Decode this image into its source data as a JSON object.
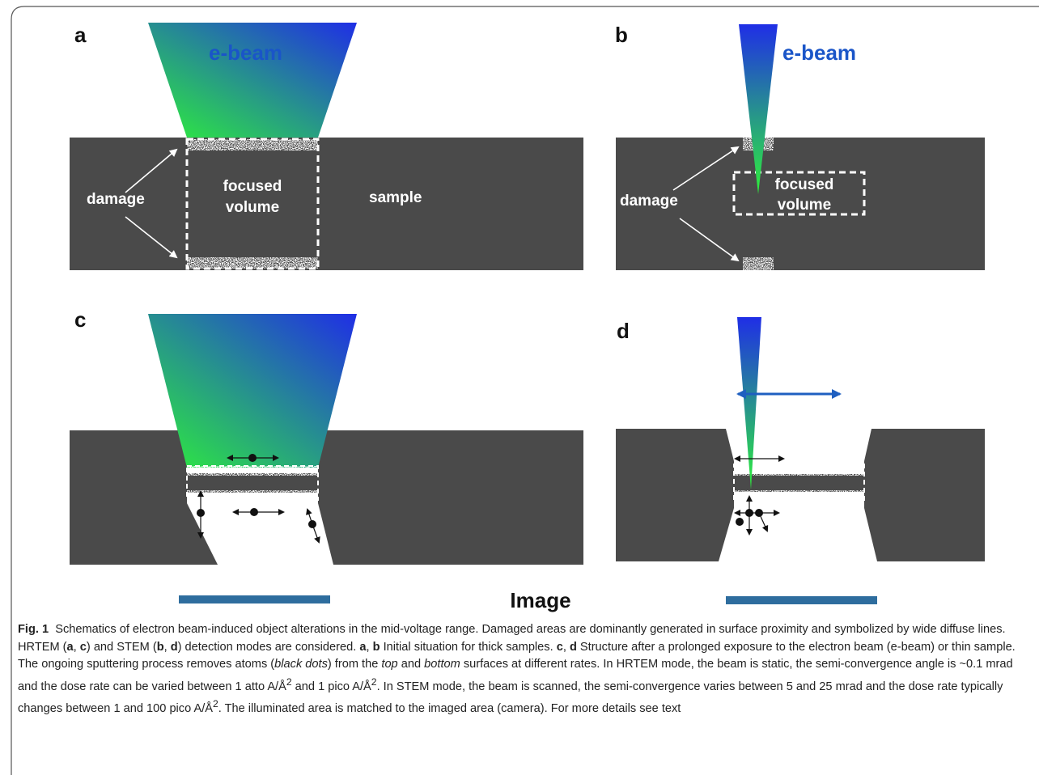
{
  "panels": {
    "a": {
      "letter": "a",
      "beam_label": "e-beam",
      "damage_label": "damage",
      "volume_line1": "focused",
      "volume_line2": "volume",
      "sample_label": "sample"
    },
    "b": {
      "letter": "b",
      "beam_label": "e-beam",
      "damage_label": "damage",
      "volume_line1": "focused",
      "volume_line2": "volume"
    },
    "c": {
      "letter": "c"
    },
    "d": {
      "letter": "d"
    }
  },
  "image_label": "Image",
  "caption": {
    "fig_label": "Fig. 1",
    "t1": "Schematics of electron beam-induced object alterations in the mid-voltage range. Damaged areas are dominantly generated in surface proximity and symbolized by wide diffuse lines. HRTEM (",
    "a1": "a",
    "sep1": ", ",
    "c1": "c",
    "t2": ") and STEM (",
    "b1": "b",
    "sep2": ", ",
    "d1": "d",
    "t3": ") detection modes are considered. ",
    "a2": "a",
    "sep3": ", ",
    "b2": "b",
    "t4": " Initial situation for thick samples. ",
    "c2": "c",
    "sep4": ", ",
    "d2": "d",
    "t5": " Structure after a prolonged exposure to the electron beam (e-beam) or thin sample. The ongoing sputtering process removes atoms (",
    "i1": "black dots",
    "t6": ") from the ",
    "i2": "top",
    "t7": " and ",
    "i3": "bottom",
    "t8": " surfaces at different rates. In HRTEM mode, the beam is static, the semi-convergence angle is ~0.1 mrad and the dose rate can be varied between 1 atto A/Å",
    "s1": "2",
    "t9": " and 1 pico A/Å",
    "s2": "2",
    "t10": ". In STEM mode, the beam is scanned, the semi-convergence varies between 5 and 25 mrad and the dose rate typically changes between 1 and 100 pico A/Å",
    "s3": "2",
    "t11": ". The illuminated area is matched to the imaged area (camera). For more details see text"
  },
  "colors": {
    "sample_gray": "#4a4a4a",
    "beam_top": "#1f2ee6",
    "beam_bottom": "#2ef03a",
    "label_blue": "#1a55c8",
    "camera_bar": "#2e6d9e",
    "frame": "#555555"
  }
}
